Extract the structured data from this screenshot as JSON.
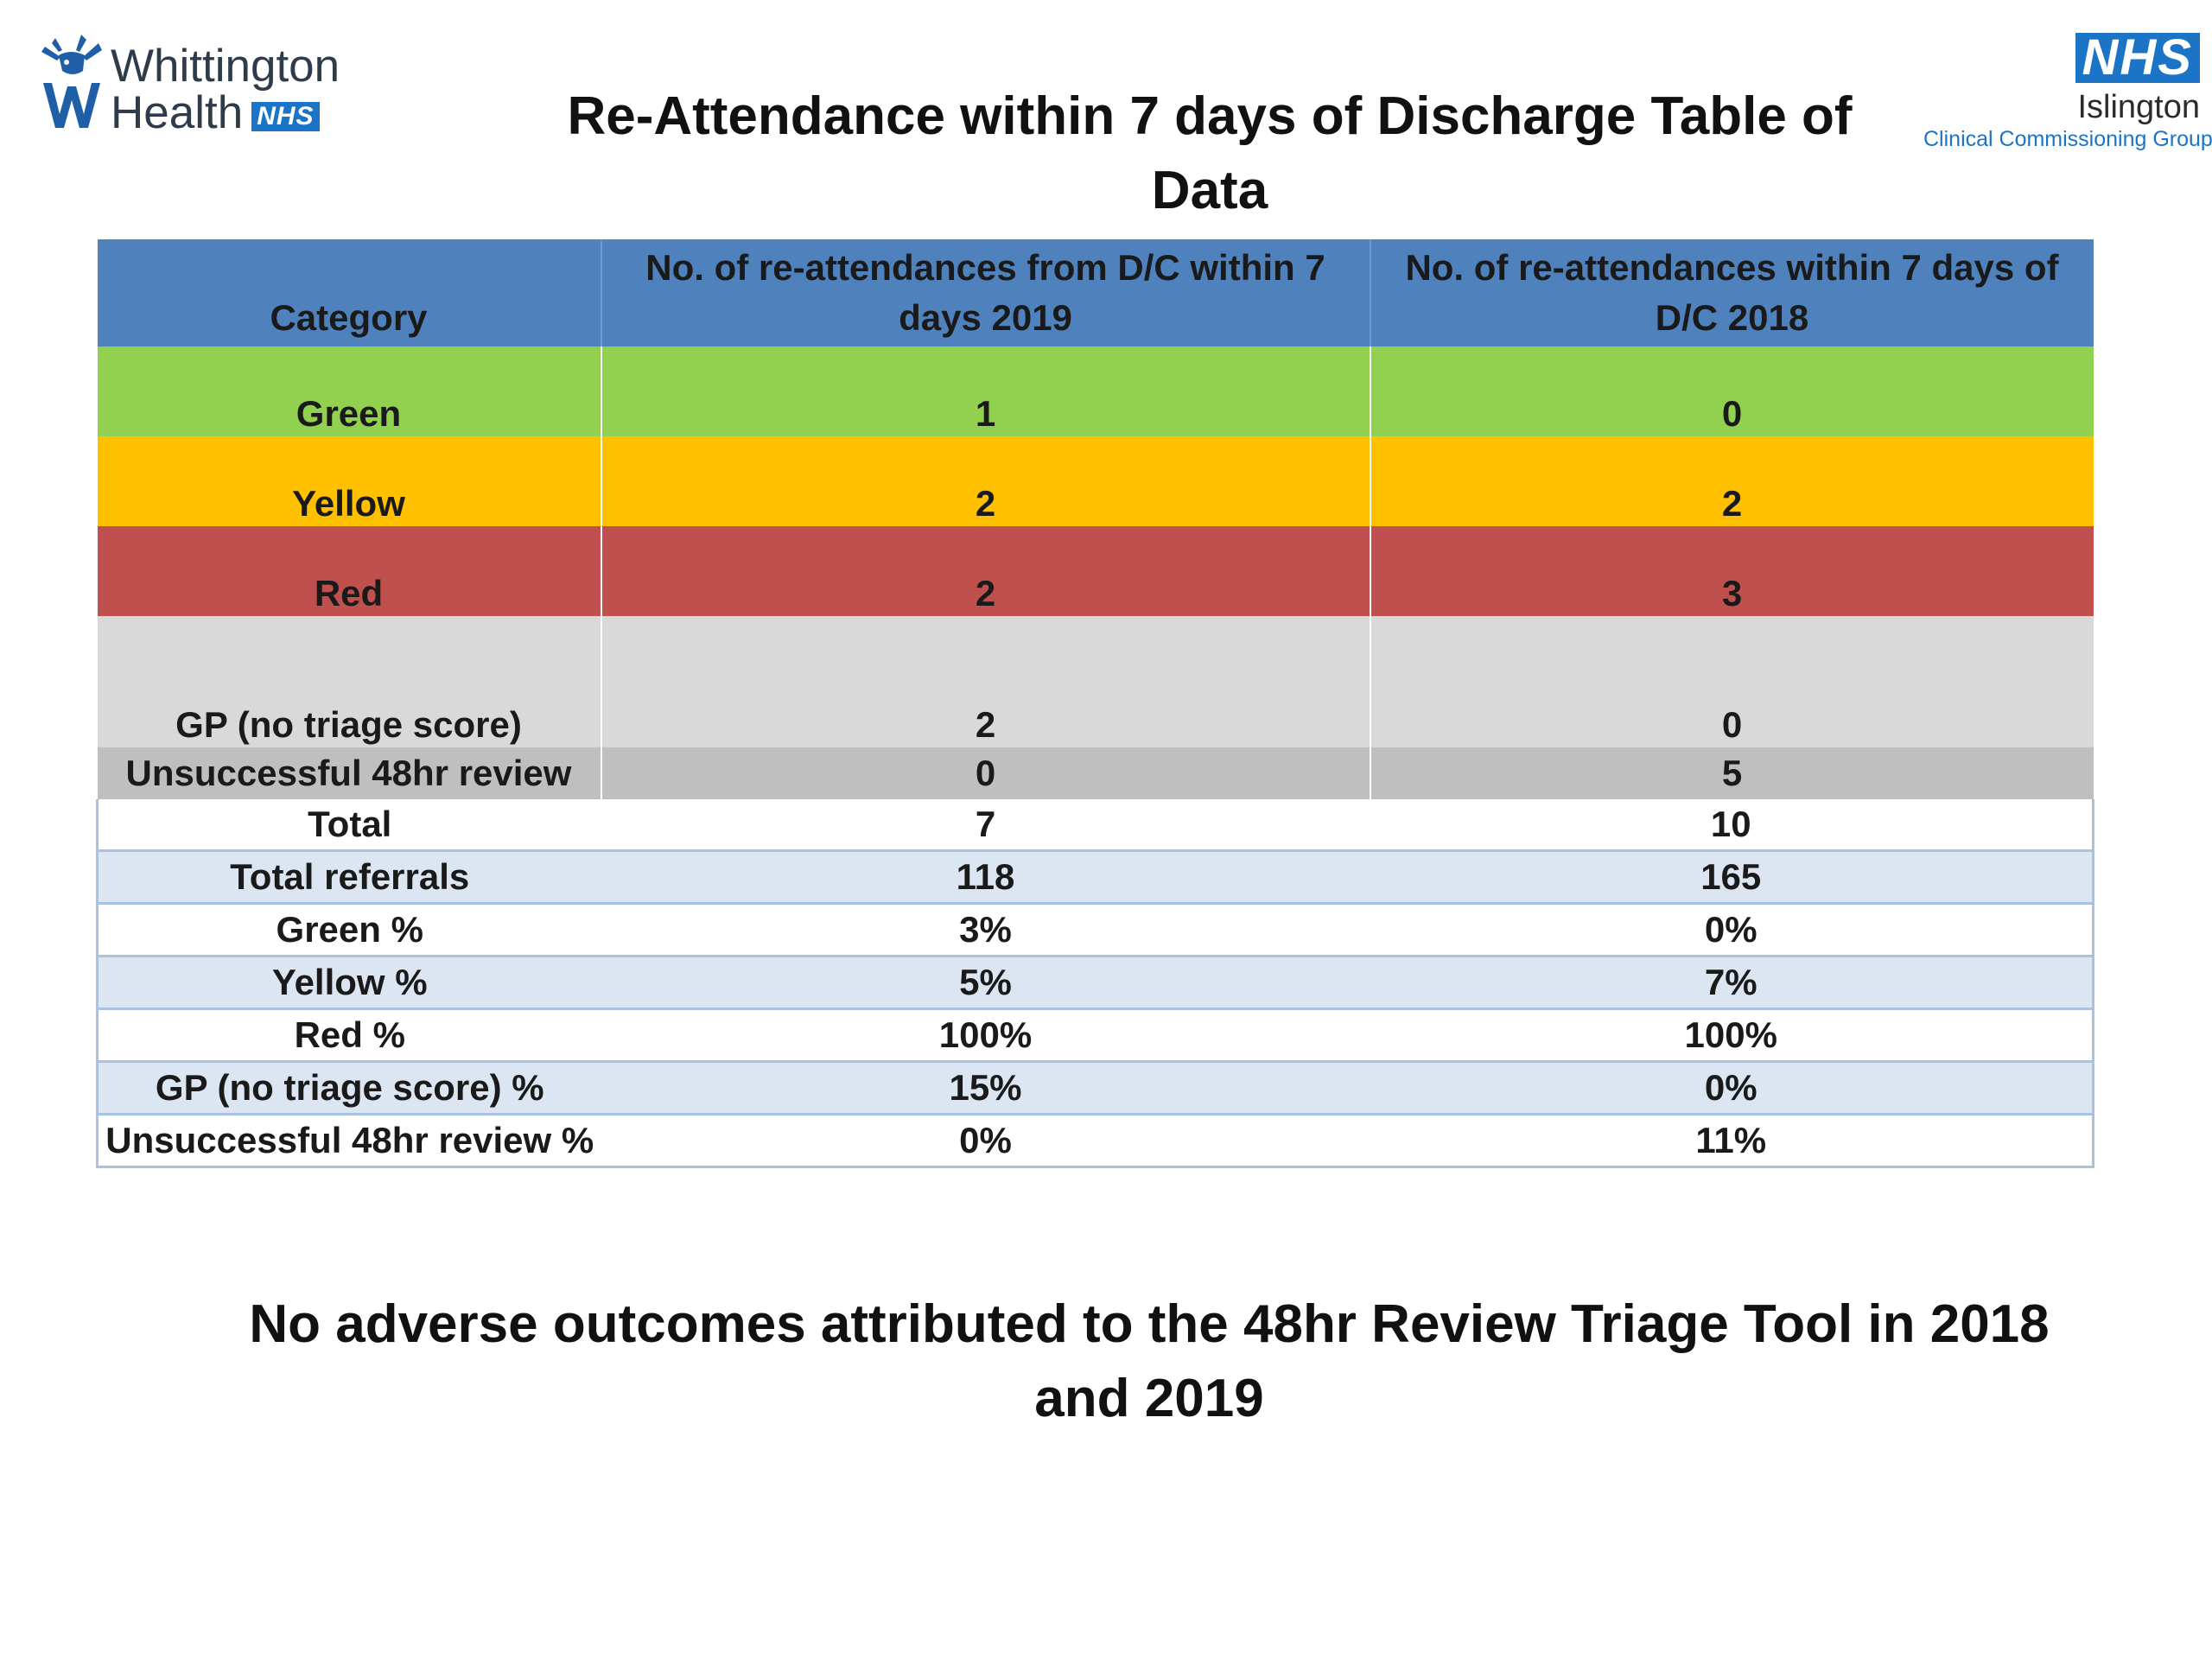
{
  "logos": {
    "left": {
      "name_line1": "Whittington",
      "name_line2": "Health",
      "badge": "NHS"
    },
    "right": {
      "badge": "NHS",
      "borough": "Islington",
      "group": "Clinical Commissioning Group"
    }
  },
  "title": "Re-Attendance within 7 days of Discharge Table of Data",
  "table": {
    "headers": [
      "Category",
      "No. of re-attendances from D/C within 7 days 2019",
      "No. of re-attendances within 7 days  of D/C 2018"
    ],
    "rows": [
      {
        "category": "Green",
        "y2019": "1",
        "y2018": "0",
        "color": "#92d050"
      },
      {
        "category": "Yellow",
        "y2019": "2",
        "y2018": "2",
        "color": "#ffc000"
      },
      {
        "category": "Red",
        "y2019": "2",
        "y2018": "3",
        "color": "#c0504d"
      },
      {
        "category": "GP (no triage score)",
        "y2019": "2",
        "y2018": "0",
        "color": "#d9d9d9"
      },
      {
        "category": "Unsuccessful 48hr review",
        "y2019": "0",
        "y2018": "5",
        "color": "#bfbfbf"
      },
      {
        "category": "Total",
        "y2019": "7",
        "y2018": "10"
      },
      {
        "category": "Total referrals",
        "y2019": "118",
        "y2018": "165"
      },
      {
        "category": "Green %",
        "y2019": "3%",
        "y2018": "0%"
      },
      {
        "category": "Yellow %",
        "y2019": "5%",
        "y2018": "7%"
      },
      {
        "category": "Red %",
        "y2019": "100%",
        "y2018": "100%"
      },
      {
        "category": "GP (no triage score) %",
        "y2019": "15%",
        "y2018": "0%"
      },
      {
        "category": "Unsuccessful 48hr review %",
        "y2019": "0%",
        "y2018": "11%"
      }
    ],
    "header_color": "#4f81bd",
    "band_color": "#dce6f2"
  },
  "footer": "No adverse outcomes attributed to the 48hr Review Triage Tool in 2018 and 2019"
}
